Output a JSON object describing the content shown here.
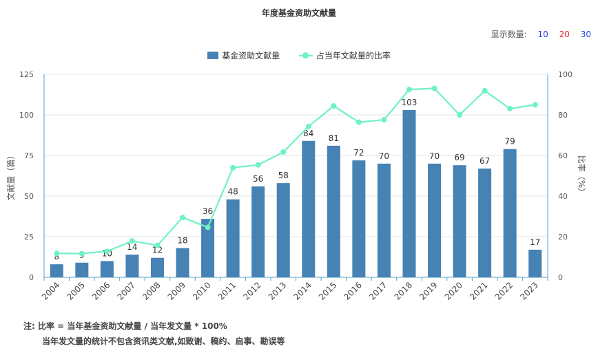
{
  "header": {
    "title": "年度基金资助文献量",
    "display_label": "显示数量:",
    "display_options": [
      "10",
      "20",
      "30"
    ]
  },
  "legend": {
    "bar_label": "基金资助文献量",
    "line_label": "占当年文献量的比率"
  },
  "colors": {
    "bar": "#4682b4",
    "line": "#6ff2c4",
    "axis": "#5a9fc9",
    "grid": "#e6e6e6"
  },
  "chart_data": {
    "type": "bar",
    "categories": [
      "2004",
      "2005",
      "2006",
      "2007",
      "2008",
      "2009",
      "2010",
      "2011",
      "2012",
      "2013",
      "2014",
      "2015",
      "2016",
      "2017",
      "2018",
      "2019",
      "2020",
      "2021",
      "2022",
      "2023"
    ],
    "series": [
      {
        "name": "基金资助文献量",
        "type": "bar",
        "axis": "left",
        "values": [
          8,
          9,
          10,
          14,
          12,
          18,
          36,
          48,
          56,
          58,
          84,
          81,
          72,
          70,
          103,
          70,
          69,
          67,
          79,
          17
        ]
      },
      {
        "name": "占当年文献量的比率",
        "type": "line",
        "axis": "right",
        "values": [
          11.8,
          11.7,
          12.8,
          17.9,
          15.7,
          29.5,
          24.6,
          54.0,
          55.4,
          61.7,
          74.3,
          84.4,
          76.4,
          77.6,
          92.5,
          93.1,
          80.0,
          91.9,
          83.1,
          85.0
        ]
      }
    ],
    "ylabel": "文献量（篇）",
    "y2label": "比率（%）",
    "ylim": [
      0,
      125
    ],
    "y2lim": [
      0,
      100
    ],
    "yticks": [
      0,
      25,
      50,
      75,
      100,
      125
    ],
    "y2ticks": [
      0,
      20,
      40,
      60,
      80,
      100
    ],
    "grid": true
  },
  "notes": {
    "line1": "注:   比率 = 当年基金资助文献量 / 当年发文量 * 100%",
    "line2": "当年发文量的统计不包含资讯类文献,如致谢、稿约、启事、勘误等"
  }
}
